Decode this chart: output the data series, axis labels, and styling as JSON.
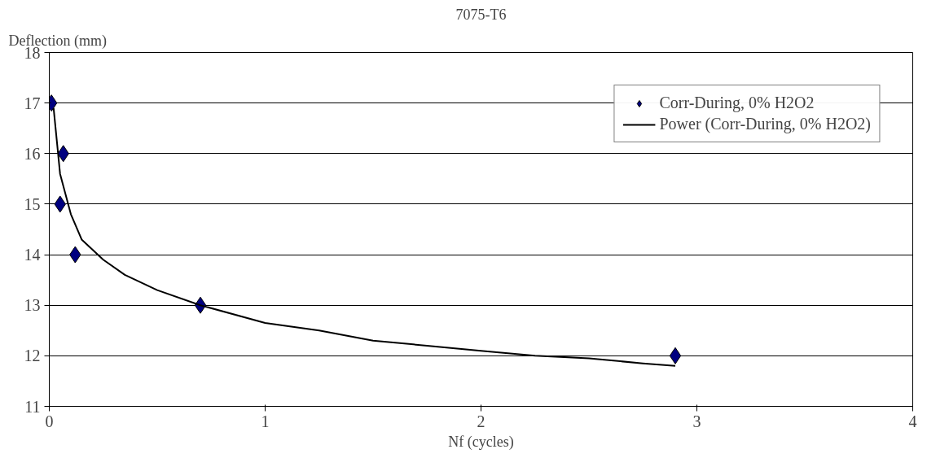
{
  "chart_data": {
    "type": "scatter",
    "title": "7075-T6",
    "xlabel": "Nf (cycles)",
    "ylabel": "Deflection (mm)",
    "xlim": [
      0,
      4
    ],
    "xticks": [
      0,
      1,
      2,
      3,
      4
    ],
    "ylim": [
      11,
      18
    ],
    "yticks": [
      11,
      12,
      13,
      14,
      15,
      16,
      17,
      18
    ],
    "grid": "y",
    "legend": "top right",
    "series": [
      {
        "name": "Corr-During, 0% H2O2",
        "marker": "diamond",
        "color": "#000080",
        "x": [
          0.01,
          0.065,
          0.05,
          0.12,
          0.7,
          2.9
        ],
        "values": [
          17,
          16,
          15,
          14,
          13,
          12
        ]
      },
      {
        "name": "Power (Corr-During, 0% H2O2)",
        "type": "line",
        "marker": "none",
        "color": "#000000",
        "x": [
          0.02,
          0.05,
          0.1,
          0.15,
          0.25,
          0.35,
          0.5,
          0.7,
          1,
          1.25,
          1.5,
          1.75,
          2,
          2.25,
          2.5,
          2.75,
          2.9
        ],
        "values": [
          16.9,
          15.6,
          14.8,
          14.3,
          13.9,
          13.6,
          13.3,
          13.0,
          12.65,
          12.5,
          12.3,
          12.2,
          12.1,
          12.0,
          11.95,
          11.85,
          11.8
        ]
      }
    ]
  }
}
